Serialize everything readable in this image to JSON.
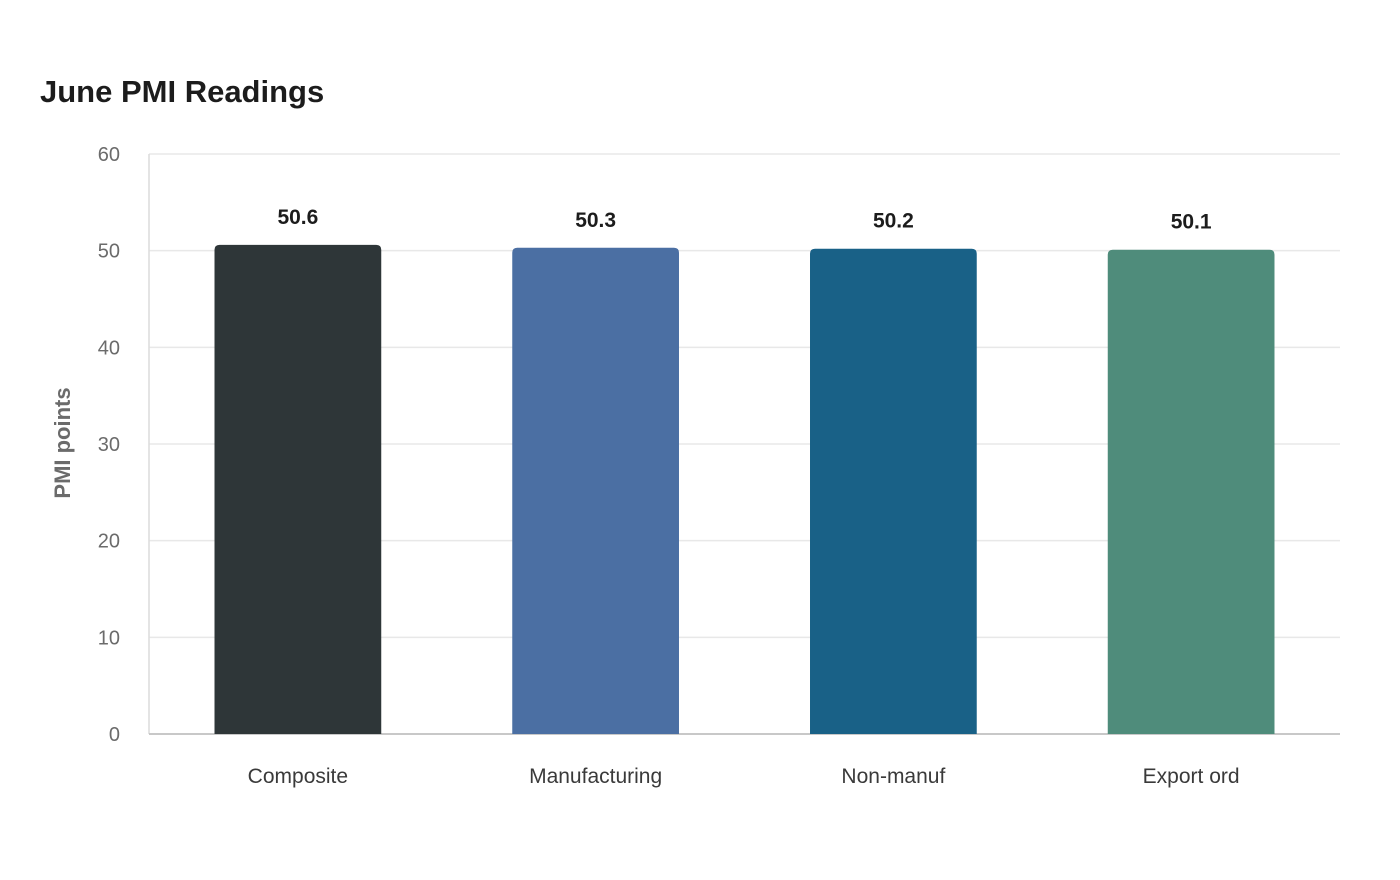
{
  "chart_data": {
    "type": "bar",
    "title": "June PMI Readings",
    "xlabel": "",
    "ylabel": "PMI points",
    "categories": [
      "Composite",
      "Manufacturing",
      "Non-manuf",
      "Export ord"
    ],
    "values": [
      50.6,
      50.3,
      50.2,
      50.1
    ],
    "data_labels": [
      "50.6",
      "50.3",
      "50.2",
      "50.1"
    ],
    "colors": [
      "#2e3638",
      "#4b6fa3",
      "#196187",
      "#4f8c7b"
    ],
    "ylim": [
      0,
      60
    ],
    "yticks": [
      0,
      10,
      20,
      30,
      40,
      50,
      60
    ],
    "grid": true,
    "legend": "none"
  }
}
